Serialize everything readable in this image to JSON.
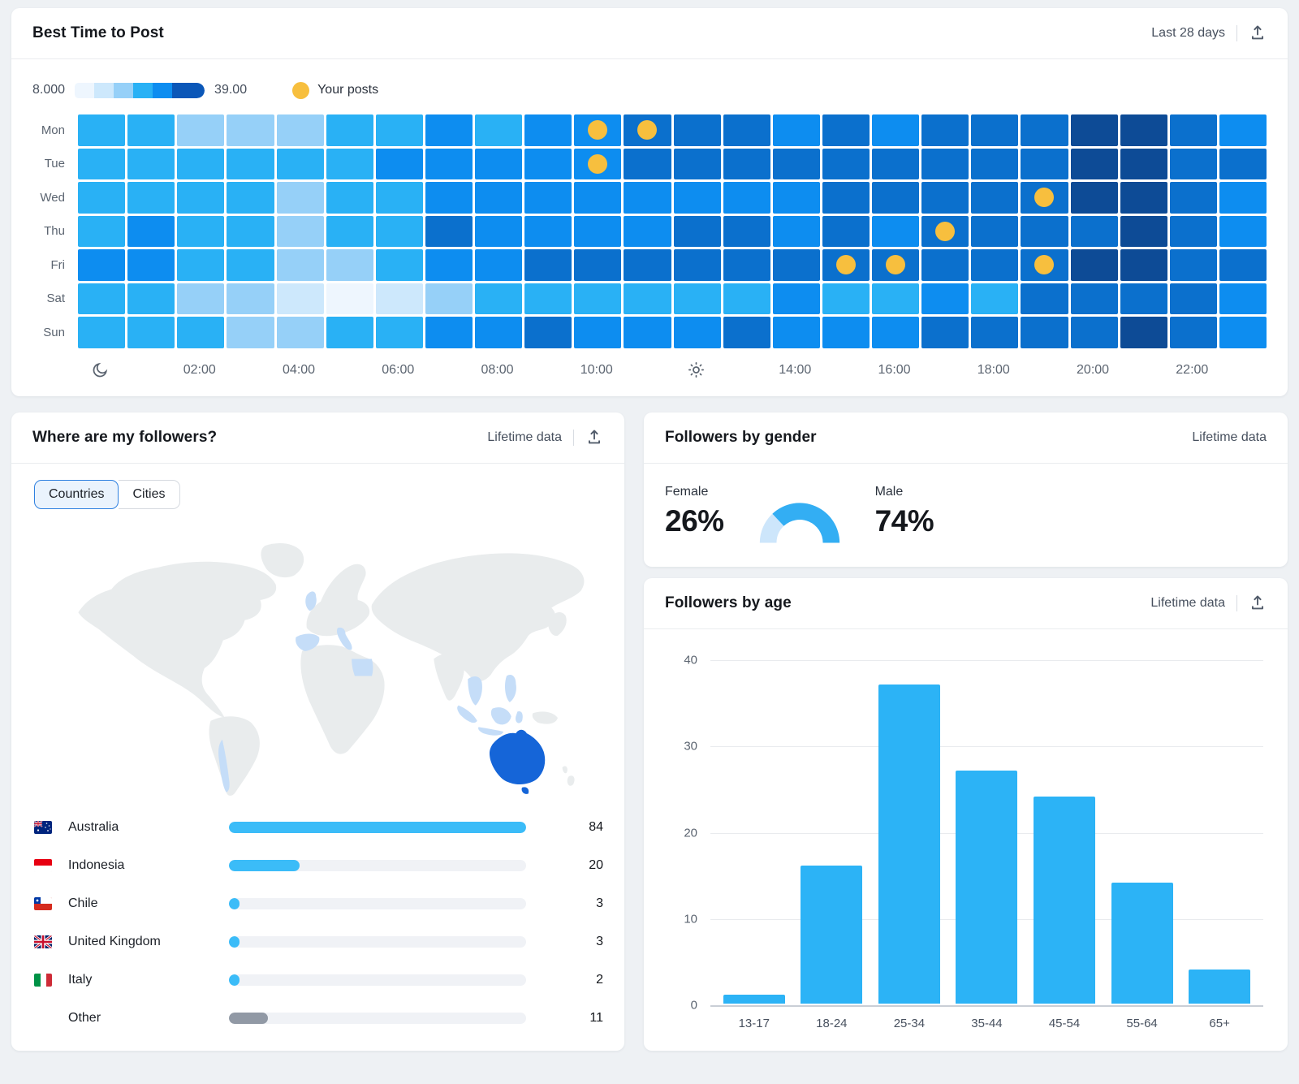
{
  "best_time": {
    "title": "Best Time to Post",
    "range_label": "Last 28 days",
    "legend": {
      "min": "8.000",
      "max": "39.00",
      "posts_label": "Your posts",
      "swatches": [
        "#eef6fe",
        "#cde8fc",
        "#96d0f8",
        "#29b1f5",
        "#0d8df0",
        "#0b57b8"
      ],
      "dot_color": "#f7bf3e"
    },
    "chart_data": {
      "type": "heatmap",
      "rows": [
        "Mon",
        "Tue",
        "Wed",
        "Thu",
        "Fri",
        "Sat",
        "Sun"
      ],
      "columns_hours": 24,
      "scale_min": 8.0,
      "scale_max": 39.0,
      "palette": [
        "#eef6fe",
        "#cde8fc",
        "#96d0f8",
        "#29b1f5",
        "#0d8df0",
        "#0b70cd",
        "#0d4b96"
      ],
      "levels": [
        [
          3,
          3,
          2,
          2,
          2,
          3,
          3,
          4,
          3,
          4,
          4,
          5,
          5,
          5,
          4,
          5,
          4,
          5,
          5,
          5,
          6,
          6,
          5,
          4
        ],
        [
          3,
          3,
          3,
          3,
          3,
          3,
          4,
          4,
          4,
          4,
          4,
          5,
          5,
          5,
          5,
          5,
          5,
          5,
          5,
          5,
          6,
          6,
          5,
          5
        ],
        [
          3,
          3,
          3,
          3,
          2,
          3,
          3,
          4,
          4,
          4,
          4,
          4,
          4,
          4,
          4,
          5,
          5,
          5,
          5,
          5,
          6,
          6,
          5,
          4
        ],
        [
          3,
          4,
          3,
          3,
          2,
          3,
          3,
          5,
          4,
          4,
          4,
          4,
          5,
          5,
          4,
          5,
          4,
          5,
          5,
          5,
          5,
          6,
          5,
          4
        ],
        [
          4,
          4,
          3,
          3,
          2,
          2,
          3,
          4,
          4,
          5,
          5,
          5,
          5,
          5,
          5,
          5,
          5,
          5,
          5,
          5,
          6,
          6,
          5,
          5
        ],
        [
          3,
          3,
          2,
          2,
          1,
          0,
          1,
          2,
          3,
          3,
          3,
          3,
          3,
          3,
          4,
          3,
          3,
          4,
          3,
          5,
          5,
          5,
          5,
          4
        ],
        [
          3,
          3,
          3,
          2,
          2,
          3,
          3,
          4,
          4,
          5,
          4,
          4,
          4,
          5,
          4,
          4,
          4,
          5,
          5,
          5,
          5,
          6,
          5,
          4
        ]
      ],
      "post_dots": [
        {
          "day": 0,
          "hour": 10
        },
        {
          "day": 0,
          "hour": 11
        },
        {
          "day": 1,
          "hour": 10
        },
        {
          "day": 2,
          "hour": 19
        },
        {
          "day": 3,
          "hour": 17
        },
        {
          "day": 4,
          "hour": 15
        },
        {
          "day": 4,
          "hour": 16
        },
        {
          "day": 4,
          "hour": 19
        }
      ],
      "hour_labels": [
        {
          "slot": 2,
          "text": "02:00"
        },
        {
          "slot": 4,
          "text": "04:00"
        },
        {
          "slot": 6,
          "text": "06:00"
        },
        {
          "slot": 8,
          "text": "08:00"
        },
        {
          "slot": 10,
          "text": "10:00"
        },
        {
          "slot": 14,
          "text": "14:00"
        },
        {
          "slot": 16,
          "text": "16:00"
        },
        {
          "slot": 18,
          "text": "18:00"
        },
        {
          "slot": 20,
          "text": "20:00"
        },
        {
          "slot": 22,
          "text": "22:00"
        }
      ],
      "icon_slots": {
        "moon": 0,
        "sun": 12
      }
    }
  },
  "followers_location": {
    "title": "Where are my followers?",
    "range_label": "Lifetime data",
    "tabs": [
      {
        "label": "Countries",
        "active": true
      },
      {
        "label": "Cities",
        "active": false
      }
    ],
    "bar_color": "#3bbcf8",
    "other_bar_color": "#9199a5",
    "map_colors": {
      "land": "#e9eced",
      "highlight_light": "#c5ddf8",
      "highlight_strong": "#1565d8"
    },
    "countries": [
      {
        "name": "Australia",
        "value": "84",
        "num": 84,
        "flag": "australia"
      },
      {
        "name": "Indonesia",
        "value": "20",
        "num": 20,
        "flag": "indonesia"
      },
      {
        "name": "Chile",
        "value": "3",
        "num": 3,
        "flag": "chile"
      },
      {
        "name": "United Kingdom",
        "value": "3",
        "num": 3,
        "flag": "uk"
      },
      {
        "name": "Italy",
        "value": "2",
        "num": 2,
        "flag": "italy"
      },
      {
        "name": "Other",
        "value": "11",
        "num": 11,
        "flag": null
      }
    ]
  },
  "gender": {
    "title": "Followers by gender",
    "range_label": "Lifetime data",
    "female": {
      "label": "Female",
      "value": "26%"
    },
    "male": {
      "label": "Male",
      "value": "74%"
    },
    "chart_data": {
      "type": "gauge",
      "female_pct": 26,
      "male_pct": 74,
      "female_color": "#cde6fb",
      "male_color": "#33aef3"
    }
  },
  "age": {
    "title": "Followers by age",
    "range_label": "Lifetime data",
    "chart_data": {
      "type": "bar",
      "categories": [
        "13-17",
        "18-24",
        "25-34",
        "35-44",
        "45-54",
        "55-64",
        "65+"
      ],
      "values": [
        1,
        16,
        37,
        27,
        24,
        14,
        4
      ],
      "title": "Followers by age",
      "xlabel": "",
      "ylabel": "",
      "ylim": [
        0,
        40
      ],
      "yticks": [
        0,
        10,
        20,
        30,
        40
      ],
      "bar_color": "#2cb3f6",
      "grid": true,
      "legend_position": "none"
    }
  }
}
